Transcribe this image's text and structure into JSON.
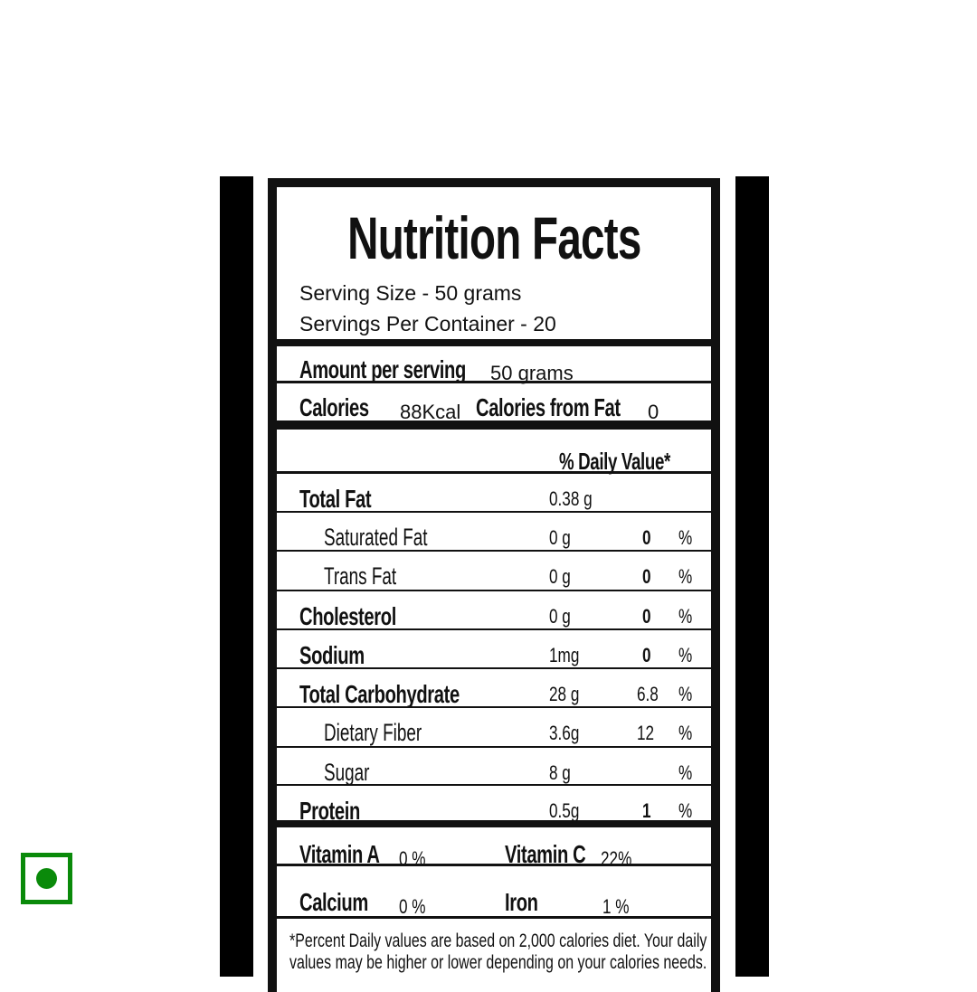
{
  "title": "Nutrition Facts",
  "serving_size": "Serving Size - 50 grams",
  "servings_per_container": "Servings Per Container - 20",
  "amount_per_serving_label": "Amount per serving",
  "amount_per_serving_value": "50 grams",
  "calories_label": "Calories",
  "calories_value": "88Kcal",
  "calories_fat_label": "Calories from Fat",
  "calories_fat_value": "0",
  "daily_value_header": "% Daily Value*",
  "nutrients": [
    {
      "name": "Total Fat",
      "amount": "0.38 g",
      "dv": "",
      "pct": ""
    },
    {
      "name": "Saturated Fat",
      "amount": "0 g",
      "dv": "0",
      "pct": "%"
    },
    {
      "name": "Trans Fat",
      "amount": "0 g",
      "dv": "0",
      "pct": "%"
    },
    {
      "name": "Cholesterol",
      "amount": "0 g",
      "dv": "0",
      "pct": "%"
    },
    {
      "name": "Sodium",
      "amount": "1mg",
      "dv": "0",
      "pct": "%"
    },
    {
      "name": "Total Carbohydrate",
      "amount": "28 g",
      "dv": "6.8",
      "pct": "%"
    },
    {
      "name": "Dietary Fiber",
      "amount": "3.6g",
      "dv": "12",
      "pct": "%"
    },
    {
      "name": "Sugar",
      "amount": "8  g",
      "dv": "",
      "pct": "%"
    },
    {
      "name": "Protein",
      "amount": "0.5g",
      "dv": "1",
      "pct": "%"
    }
  ],
  "vitamins": [
    {
      "name": "Vitamin A",
      "value": "0  %"
    },
    {
      "name": "Vitamin C",
      "value": "22%"
    },
    {
      "name": "Calcium",
      "value": "0  %"
    },
    {
      "name": "Iron",
      "value": "1  %"
    }
  ],
  "footnote_line1": "*Percent Daily values are based on 2,000 calories diet. Your daily",
  "footnote_line2": "values may be higher or lower depending on your calories needs.",
  "colors": {
    "veg_mark": "#0a8a0a",
    "ink": "#111111"
  },
  "icons": {
    "veg": "veg-symbol-icon"
  }
}
